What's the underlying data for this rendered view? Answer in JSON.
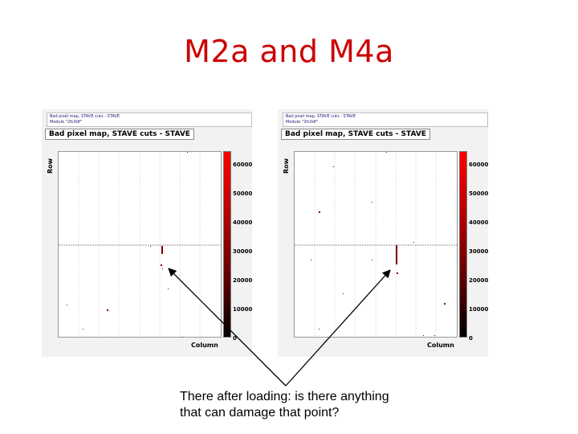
{
  "slide": {
    "title": "M2a and M4a",
    "caption_lines": [
      "There after loading: is there anything",
      " that can damage that point?"
    ]
  },
  "plots": [
    {
      "header_line1": "Bad pixel map, STAVE cuts - STAVE",
      "header_line2": "Module \"2fc0df\"",
      "subtitle": "Bad pixel map, STAVE cuts - STAVE",
      "y_axis_label": "Row",
      "x_axis_label": "Column",
      "colorbar_ticks": [
        "60000",
        "50000",
        "40000",
        "30000",
        "20000",
        "10000",
        "0"
      ]
    },
    {
      "header_line1": "Bad pixel map, STAVE cuts - STAVE",
      "header_line2": "Module \"2fc0df\"",
      "subtitle": "Bad pixel map, STAVE cuts - STAVE",
      "y_axis_label": "Row",
      "x_axis_label": "Column",
      "colorbar_ticks": [
        "60000",
        "50000",
        "40000",
        "30000",
        "20000",
        "10000",
        "0"
      ]
    }
  ],
  "colors": {
    "title": "#cc0000",
    "colorbar_top": "#ff0000",
    "colorbar_bottom": "#000000"
  }
}
